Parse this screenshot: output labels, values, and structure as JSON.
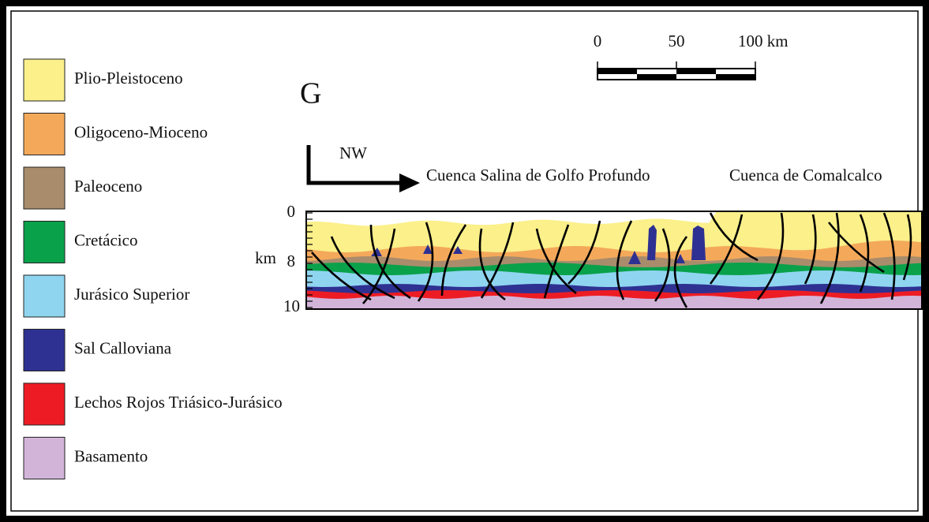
{
  "panel_label": "G",
  "legend": [
    {
      "label": "Plio-Pleistoceno",
      "color": "#fbf08a"
    },
    {
      "label": "Oligoceno-Mioceno",
      "color": "#f4a95a"
    },
    {
      "label": "Paleoceno",
      "color": "#a98c6c"
    },
    {
      "label": "Cretácico",
      "color": "#0aa14b"
    },
    {
      "label": "Jurásico Superior",
      "color": "#8fd5f0"
    },
    {
      "label": "Sal Calloviana",
      "color": "#2e3192"
    },
    {
      "label": "Lechos Rojos Triásico-Jurásico",
      "color": "#ed1c24"
    },
    {
      "label": "Basamento",
      "color": "#d2b4d9"
    }
  ],
  "scale_bar": {
    "labels": [
      "0",
      "50",
      "100 km"
    ]
  },
  "direction": "NW",
  "regions": [
    "Cuenca Salina de Golfo Profundo",
    "Cuenca de Comalcalco"
  ],
  "depth_axis": {
    "unit": "km",
    "labels": [
      "0",
      "8",
      "10"
    ]
  }
}
